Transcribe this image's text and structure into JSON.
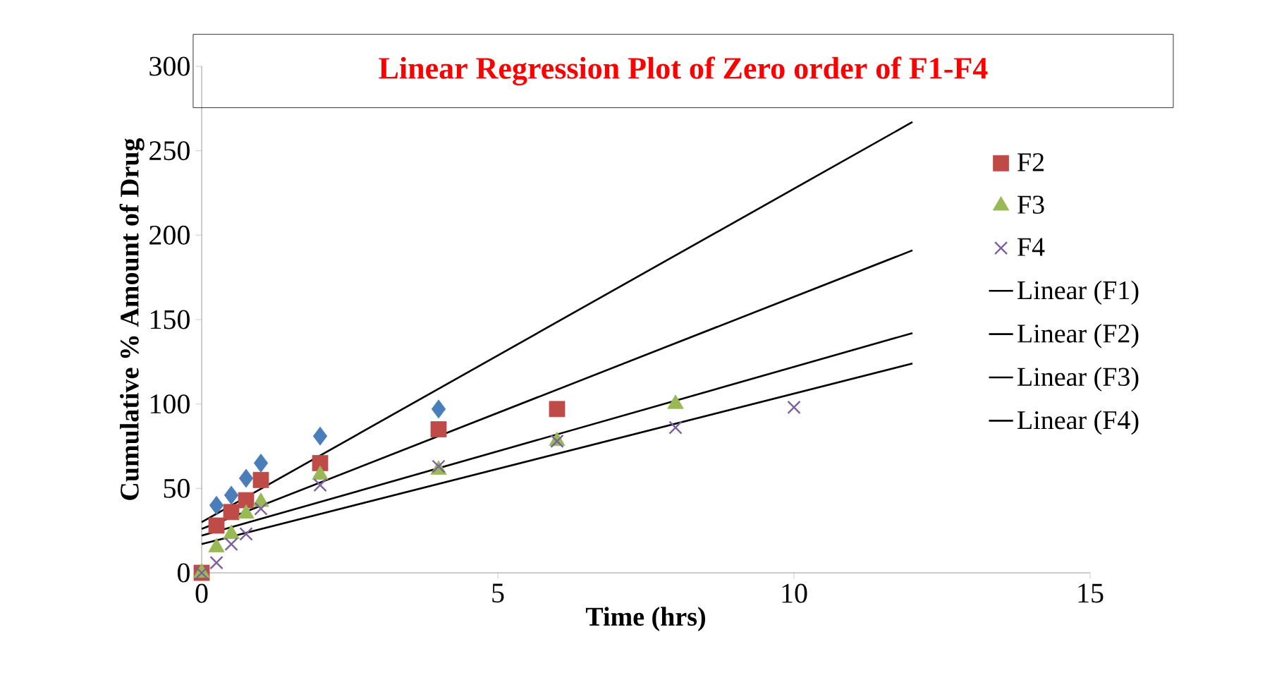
{
  "chart_data": {
    "type": "scatter",
    "title": "Linear Regression Plot of Zero order of F1-F4",
    "xlabel": "Time (hrs)",
    "ylabel": "Cumulative % Amount of Drug",
    "xlim": [
      0,
      15
    ],
    "ylim": [
      0,
      300
    ],
    "xticks": [
      0,
      5,
      10,
      15
    ],
    "yticks": [
      0,
      50,
      100,
      150,
      200,
      250,
      300
    ],
    "legend": "right",
    "series": [
      {
        "color": "#4a7ebb",
        "marker": "diamond",
        "x": [
          0.25,
          0.5,
          0.75,
          1,
          2,
          4
        ],
        "values": [
          40,
          46,
          56,
          65,
          81,
          97
        ]
      },
      {
        "name": "F2",
        "color": "#be4b48",
        "marker": "square",
        "x": [
          0,
          0.25,
          0.5,
          0.75,
          1,
          2,
          4,
          6
        ],
        "values": [
          0,
          28,
          36,
          43,
          55,
          65,
          85,
          97
        ]
      },
      {
        "name": "F3",
        "color": "#98b954",
        "marker": "triangle",
        "x": [
          0,
          0.25,
          0.5,
          0.75,
          1,
          2,
          4,
          6,
          8
        ],
        "values": [
          0,
          15,
          23,
          35,
          42,
          58,
          61,
          78,
          100
        ]
      },
      {
        "name": "F4",
        "color": "#7d60a0",
        "marker": "cross",
        "x": [
          0,
          0.25,
          0.5,
          0.75,
          1,
          2,
          4,
          6,
          8,
          10
        ],
        "values": [
          0,
          6,
          17,
          23,
          38,
          52,
          63,
          78,
          86,
          98
        ]
      },
      {
        "name": "Linear (F1)",
        "type": "line",
        "color": "#000000",
        "x": [
          0,
          12
        ],
        "values": [
          30,
          267
        ]
      },
      {
        "name": "Linear (F2)",
        "type": "line",
        "color": "#000000",
        "x": [
          0,
          12
        ],
        "values": [
          26,
          191
        ]
      },
      {
        "name": "Linear (F3)",
        "type": "line",
        "color": "#000000",
        "x": [
          0,
          12
        ],
        "values": [
          22,
          142
        ]
      },
      {
        "name": "Linear (F4)",
        "type": "line",
        "color": "#000000",
        "x": [
          0,
          12
        ],
        "values": [
          17,
          124
        ]
      }
    ]
  }
}
